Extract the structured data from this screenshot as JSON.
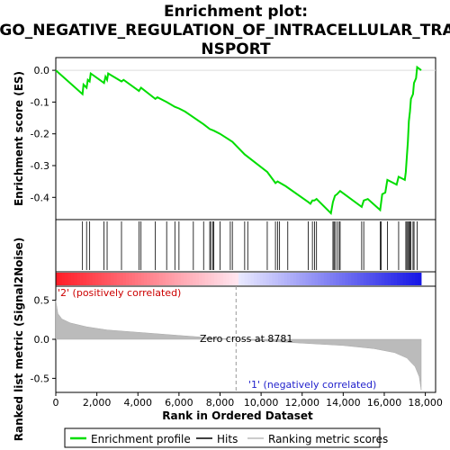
{
  "chart_data": {
    "type": "line",
    "title_lines": [
      "Enrichment plot:",
      "GO_NEGATIVE_REGULATION_OF_INTRACELLULAR_TRA",
      "NSPORT"
    ],
    "top_panel": {
      "ylabel": "Enrichment score (ES)",
      "ylim": [
        -0.47,
        0.04
      ],
      "yticks": [
        0.0,
        -0.1,
        -0.2,
        -0.3,
        -0.4
      ],
      "ytick_labels": [
        "0.0",
        "-0.1",
        "-0.2",
        "-0.3",
        "-0.4"
      ],
      "series_color": "#00dd00",
      "es_curve": [
        [
          0,
          0.0
        ],
        [
          1300,
          -0.075
        ],
        [
          1350,
          -0.045
        ],
        [
          1500,
          -0.055
        ],
        [
          1560,
          -0.03
        ],
        [
          1650,
          -0.035
        ],
        [
          1700,
          -0.01
        ],
        [
          2350,
          -0.04
        ],
        [
          2420,
          -0.02
        ],
        [
          2500,
          -0.03
        ],
        [
          2550,
          -0.01
        ],
        [
          3200,
          -0.035
        ],
        [
          3300,
          -0.03
        ],
        [
          4050,
          -0.065
        ],
        [
          4150,
          -0.055
        ],
        [
          4850,
          -0.09
        ],
        [
          4950,
          -0.085
        ],
        [
          5400,
          -0.1
        ],
        [
          5800,
          -0.115
        ],
        [
          6000,
          -0.12
        ],
        [
          6300,
          -0.13
        ],
        [
          7200,
          -0.17
        ],
        [
          7500,
          -0.185
        ],
        [
          7700,
          -0.19
        ],
        [
          8000,
          -0.2
        ],
        [
          8600,
          -0.225
        ],
        [
          9200,
          -0.265
        ],
        [
          10300,
          -0.32
        ],
        [
          10700,
          -0.355
        ],
        [
          10800,
          -0.35
        ],
        [
          11200,
          -0.365
        ],
        [
          12300,
          -0.415
        ],
        [
          12400,
          -0.42
        ],
        [
          12500,
          -0.41
        ],
        [
          12600,
          -0.41
        ],
        [
          12700,
          -0.405
        ],
        [
          13400,
          -0.45
        ],
        [
          13500,
          -0.415
        ],
        [
          13600,
          -0.395
        ],
        [
          13700,
          -0.39
        ],
        [
          13850,
          -0.38
        ],
        [
          14900,
          -0.43
        ],
        [
          15000,
          -0.41
        ],
        [
          15200,
          -0.405
        ],
        [
          15800,
          -0.44
        ],
        [
          15900,
          -0.39
        ],
        [
          16050,
          -0.385
        ],
        [
          16150,
          -0.345
        ],
        [
          16600,
          -0.36
        ],
        [
          16700,
          -0.335
        ],
        [
          17000,
          -0.345
        ],
        [
          17050,
          -0.32
        ],
        [
          17100,
          -0.27
        ],
        [
          17150,
          -0.225
        ],
        [
          17200,
          -0.16
        ],
        [
          17250,
          -0.13
        ],
        [
          17300,
          -0.09
        ],
        [
          17400,
          -0.075
        ],
        [
          17450,
          -0.04
        ],
        [
          17550,
          -0.025
        ],
        [
          17600,
          0.01
        ],
        [
          17800,
          0.0
        ]
      ]
    },
    "hits": [
      1300,
      1500,
      1650,
      2350,
      2500,
      3200,
      4050,
      4150,
      4850,
      5400,
      5800,
      6000,
      6700,
      7200,
      7500,
      7550,
      7650,
      7700,
      8000,
      8500,
      8600,
      9200,
      9350,
      10300,
      10700,
      10800,
      10900,
      11300,
      12300,
      12500,
      12600,
      12700,
      13500,
      13550,
      13600,
      13700,
      13800,
      13850,
      14900,
      15000,
      15800,
      15850,
      16150,
      16700,
      17050,
      17100,
      17150,
      17200,
      17250,
      17300,
      17400,
      17450,
      17600
    ],
    "bottom_panel": {
      "ylabel": "Ranked list metric (Signal2Noise)",
      "ylim": [
        -0.68,
        0.68
      ],
      "yticks": [
        0.5,
        0.0,
        -0.5
      ],
      "ytick_labels": [
        "0.5",
        "0.0",
        "-0.5"
      ],
      "metric_curve": [
        [
          0,
          0.5
        ],
        [
          100,
          0.33
        ],
        [
          300,
          0.26
        ],
        [
          700,
          0.21
        ],
        [
          1500,
          0.16
        ],
        [
          2500,
          0.12
        ],
        [
          4000,
          0.09
        ],
        [
          6000,
          0.05
        ],
        [
          8000,
          0.01
        ],
        [
          8781,
          0.0
        ],
        [
          10000,
          -0.02
        ],
        [
          12000,
          -0.05
        ],
        [
          14000,
          -0.08
        ],
        [
          15500,
          -0.12
        ],
        [
          16500,
          -0.17
        ],
        [
          17100,
          -0.24
        ],
        [
          17500,
          -0.35
        ],
        [
          17700,
          -0.48
        ],
        [
          17800,
          -0.65
        ]
      ],
      "annotations": {
        "zero_cross": "Zero cross at 8781",
        "zero_cross_x": 8781,
        "pos_label": "'2' (positively correlated)",
        "neg_label": "'1' (negatively correlated)"
      }
    },
    "xlabel": "Rank in Ordered Dataset",
    "xlim": [
      0,
      18500
    ],
    "xticks": [
      0,
      2000,
      4000,
      6000,
      8000,
      10000,
      12000,
      14000,
      16000,
      18000
    ],
    "xtick_labels": [
      "0",
      "2,000",
      "4,000",
      "6,000",
      "8,000",
      "10,000",
      "12,000",
      "14,000",
      "16,000",
      "18,000"
    ],
    "n_genes": 17800,
    "legend": [
      {
        "label": "Enrichment profile",
        "color": "#00dd00"
      },
      {
        "label": "Hits",
        "color": "#000000"
      },
      {
        "label": "Ranking metric scores",
        "color": "#bbbbbb"
      }
    ]
  }
}
